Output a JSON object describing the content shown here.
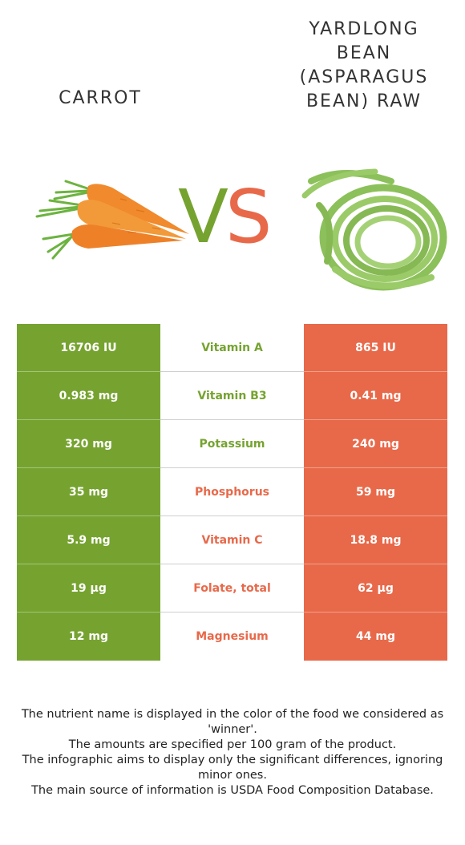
{
  "header": {
    "left_food": "CARROT",
    "right_food_lines": [
      "YARDLONG",
      "BEAN",
      "(ASPARAGUS",
      "BEAN) RAW"
    ],
    "vs_v": "V",
    "vs_s": "S"
  },
  "images": {
    "left": "carrot-illustration",
    "right": "yardlong-bean-illustration"
  },
  "colors": {
    "left_winner": "#76a330",
    "right_winner": "#e8694a"
  },
  "rows": [
    {
      "left": "16706 IU",
      "nutrient": "Vitamin A",
      "right": "865 IU",
      "winner": "left"
    },
    {
      "left": "0.983 mg",
      "nutrient": "Vitamin B3",
      "right": "0.41 mg",
      "winner": "left"
    },
    {
      "left": "320 mg",
      "nutrient": "Potassium",
      "right": "240 mg",
      "winner": "left"
    },
    {
      "left": "35 mg",
      "nutrient": "Phosphorus",
      "right": "59 mg",
      "winner": "right"
    },
    {
      "left": "5.9 mg",
      "nutrient": "Vitamin C",
      "right": "18.8 mg",
      "winner": "right"
    },
    {
      "left": "19 µg",
      "nutrient": "Folate, total",
      "right": "62 µg",
      "winner": "right"
    },
    {
      "left": "12 mg",
      "nutrient": "Magnesium",
      "right": "44 mg",
      "winner": "right"
    }
  ],
  "footer": [
    "The nutrient name is displayed in the color of the food we considered as 'winner'.",
    "The amounts are specified per 100 gram of the product.",
    "The infographic aims to display only the significant differences, ignoring minor ones.",
    "The main source of information is USDA Food Composition Database."
  ]
}
